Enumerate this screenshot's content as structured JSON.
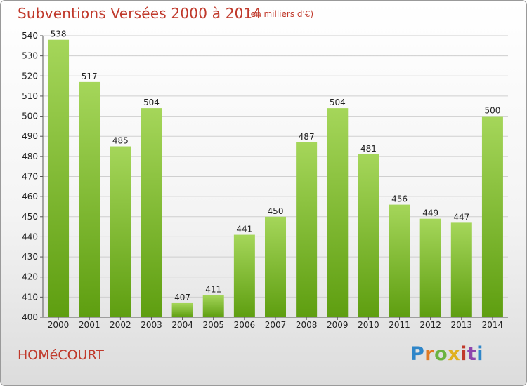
{
  "header": {
    "title": "Subventions Versées 2000 à 2014",
    "unit_note": "(en milliers d'€)"
  },
  "footer": {
    "commune": "HOMéCOURT",
    "logo_text": "Proxiti"
  },
  "colors": {
    "title": "#c0392b",
    "bar_light": "#a5d65a",
    "bar_dark": "#5e9e10",
    "grid": "#cfcfcf",
    "axis": "#555555"
  },
  "chart_data": {
    "type": "bar",
    "title": "Subventions Versées 2000 à 2014",
    "subtitle": "(en milliers d'€)",
    "categories": [
      "2000",
      "2001",
      "2002",
      "2003",
      "2004",
      "2005",
      "2006",
      "2007",
      "2008",
      "2009",
      "2010",
      "2011",
      "2012",
      "2013",
      "2014"
    ],
    "values": [
      538,
      517,
      485,
      504,
      407,
      411,
      441,
      450,
      487,
      504,
      481,
      456,
      449,
      447,
      500
    ],
    "xlabel": "",
    "ylabel": "",
    "ylim": [
      400,
      540
    ],
    "yticks": [
      400,
      410,
      420,
      430,
      440,
      450,
      460,
      470,
      480,
      490,
      500,
      510,
      520,
      530,
      540
    ],
    "grid": true,
    "legend": "none"
  }
}
